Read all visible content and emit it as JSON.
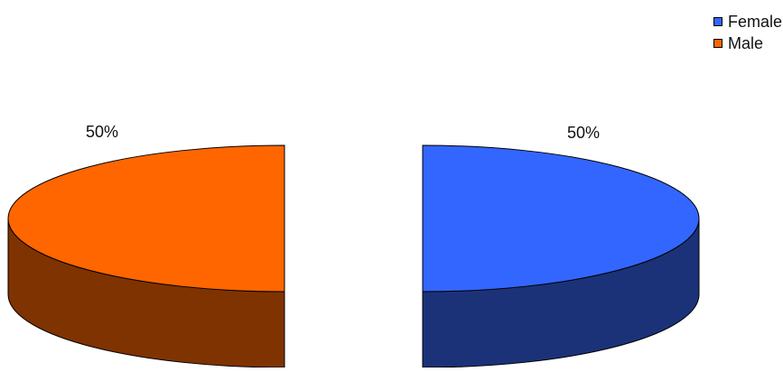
{
  "chart_data": {
    "type": "pie",
    "style": "3d-exploded",
    "title": "",
    "categories": [
      "Female",
      "Male"
    ],
    "values": [
      50,
      50
    ],
    "labels": [
      "50%",
      "50%"
    ],
    "colors": {
      "Female": {
        "top": "#3366FF",
        "side": "#1C3278"
      },
      "Male": {
        "top": "#FF6600",
        "side": "#7F3300"
      }
    },
    "legend": {
      "position": "top-right",
      "entries": [
        "Female",
        "Male"
      ]
    }
  }
}
